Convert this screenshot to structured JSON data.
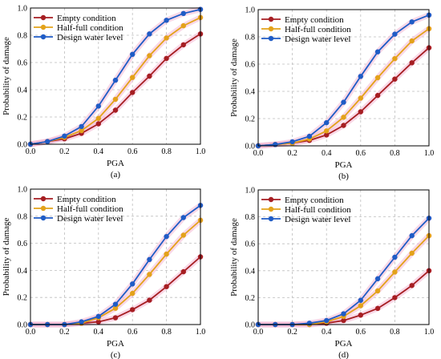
{
  "colors": {
    "empty": "#a61e22",
    "half": "#e3a21a",
    "design": "#1f5cc6",
    "band": "#f4b8d4"
  },
  "chart_data": [
    {
      "type": "line",
      "panel_label": "(a)",
      "xlabel": "PGA",
      "ylabel": "Probability of damage",
      "xlim": [
        0,
        1
      ],
      "ylim": [
        0,
        1
      ],
      "xticks": [
        "0.0",
        "0.2",
        "0.4",
        "0.6",
        "0.8",
        "1.0"
      ],
      "yticks": [
        "0.0",
        "0.2",
        "0.4",
        "0.6",
        "0.8",
        "1.0"
      ],
      "grid": true,
      "legend_position": "top-left",
      "x": [
        0.0,
        0.1,
        0.2,
        0.3,
        0.4,
        0.5,
        0.6,
        0.7,
        0.8,
        0.9,
        1.0
      ],
      "series": [
        {
          "name": "Empty condition",
          "color_key": "empty",
          "values": [
            0.0,
            0.02,
            0.04,
            0.08,
            0.15,
            0.25,
            0.38,
            0.5,
            0.63,
            0.73,
            0.81
          ]
        },
        {
          "name": "Half-full condition",
          "color_key": "half",
          "values": [
            0.0,
            0.02,
            0.05,
            0.1,
            0.19,
            0.33,
            0.49,
            0.65,
            0.78,
            0.87,
            0.93
          ]
        },
        {
          "name": "Design water level",
          "color_key": "design",
          "values": [
            0.0,
            0.02,
            0.06,
            0.13,
            0.28,
            0.47,
            0.66,
            0.81,
            0.91,
            0.96,
            0.99
          ]
        }
      ]
    },
    {
      "type": "line",
      "panel_label": "(b)",
      "xlabel": "PGA",
      "ylabel": "Probability of damage",
      "xlim": [
        0,
        1
      ],
      "ylim": [
        0,
        1
      ],
      "xticks": [
        "0.0",
        "0.2",
        "0.4",
        "0.6",
        "0.8",
        "1.0"
      ],
      "yticks": [
        "0.0",
        "0.2",
        "0.4",
        "0.6",
        "0.8",
        "1.0"
      ],
      "grid": true,
      "legend_position": "top-left",
      "x": [
        0.0,
        0.1,
        0.2,
        0.3,
        0.4,
        0.5,
        0.6,
        0.7,
        0.8,
        0.9,
        1.0
      ],
      "series": [
        {
          "name": "Empty condition",
          "color_key": "empty",
          "values": [
            0.0,
            0.01,
            0.02,
            0.04,
            0.08,
            0.15,
            0.25,
            0.37,
            0.49,
            0.61,
            0.72
          ]
        },
        {
          "name": "Half-full condition",
          "color_key": "half",
          "values": [
            0.0,
            0.01,
            0.02,
            0.05,
            0.11,
            0.21,
            0.35,
            0.5,
            0.64,
            0.77,
            0.86
          ]
        },
        {
          "name": "Design water level",
          "color_key": "design",
          "values": [
            0.0,
            0.01,
            0.03,
            0.07,
            0.17,
            0.32,
            0.51,
            0.69,
            0.82,
            0.91,
            0.96
          ]
        }
      ]
    },
    {
      "type": "line",
      "panel_label": "(c)",
      "xlabel": "PGA",
      "ylabel": "Probability of damage",
      "xlim": [
        0,
        1
      ],
      "ylim": [
        0,
        1
      ],
      "xticks": [
        "0.0",
        "0.2",
        "0.4",
        "0.6",
        "0.8",
        "1.0"
      ],
      "yticks": [
        "0.0",
        "0.2",
        "0.4",
        "0.6",
        "0.8",
        "1.0"
      ],
      "grid": true,
      "legend_position": "top-left",
      "x": [
        0.0,
        0.1,
        0.2,
        0.3,
        0.4,
        0.5,
        0.6,
        0.7,
        0.8,
        0.9,
        1.0
      ],
      "series": [
        {
          "name": "Empty condition",
          "color_key": "empty",
          "values": [
            0.0,
            0.0,
            0.0,
            0.01,
            0.02,
            0.05,
            0.11,
            0.18,
            0.28,
            0.39,
            0.5
          ]
        },
        {
          "name": "Half-full condition",
          "color_key": "half",
          "values": [
            0.0,
            0.0,
            0.0,
            0.01,
            0.05,
            0.12,
            0.23,
            0.37,
            0.52,
            0.66,
            0.77
          ]
        },
        {
          "name": "Design water level",
          "color_key": "design",
          "values": [
            0.0,
            0.0,
            0.0,
            0.02,
            0.06,
            0.15,
            0.3,
            0.48,
            0.65,
            0.79,
            0.88
          ]
        }
      ]
    },
    {
      "type": "line",
      "panel_label": "(d)",
      "xlabel": "PGA",
      "ylabel": "Probability of damage",
      "xlim": [
        0,
        1
      ],
      "ylim": [
        0,
        1
      ],
      "xticks": [
        "0.0",
        "0.2",
        "0.4",
        "0.6",
        "0.8",
        "1.0"
      ],
      "yticks": [
        "0.0",
        "0.2",
        "0.4",
        "0.6",
        "0.8",
        "1.0"
      ],
      "grid": true,
      "legend_position": "top-left",
      "x": [
        0.0,
        0.1,
        0.2,
        0.3,
        0.4,
        0.5,
        0.6,
        0.7,
        0.8,
        0.9,
        1.0
      ],
      "series": [
        {
          "name": "Empty condition",
          "color_key": "empty",
          "values": [
            0.0,
            0.0,
            0.0,
            0.0,
            0.01,
            0.03,
            0.07,
            0.12,
            0.2,
            0.29,
            0.4
          ]
        },
        {
          "name": "Half-full condition",
          "color_key": "half",
          "values": [
            0.0,
            0.0,
            0.0,
            0.0,
            0.02,
            0.06,
            0.14,
            0.25,
            0.39,
            0.53,
            0.66
          ]
        },
        {
          "name": "Design water level",
          "color_key": "design",
          "values": [
            0.0,
            0.0,
            0.0,
            0.01,
            0.03,
            0.08,
            0.18,
            0.34,
            0.5,
            0.66,
            0.79
          ]
        }
      ]
    }
  ]
}
